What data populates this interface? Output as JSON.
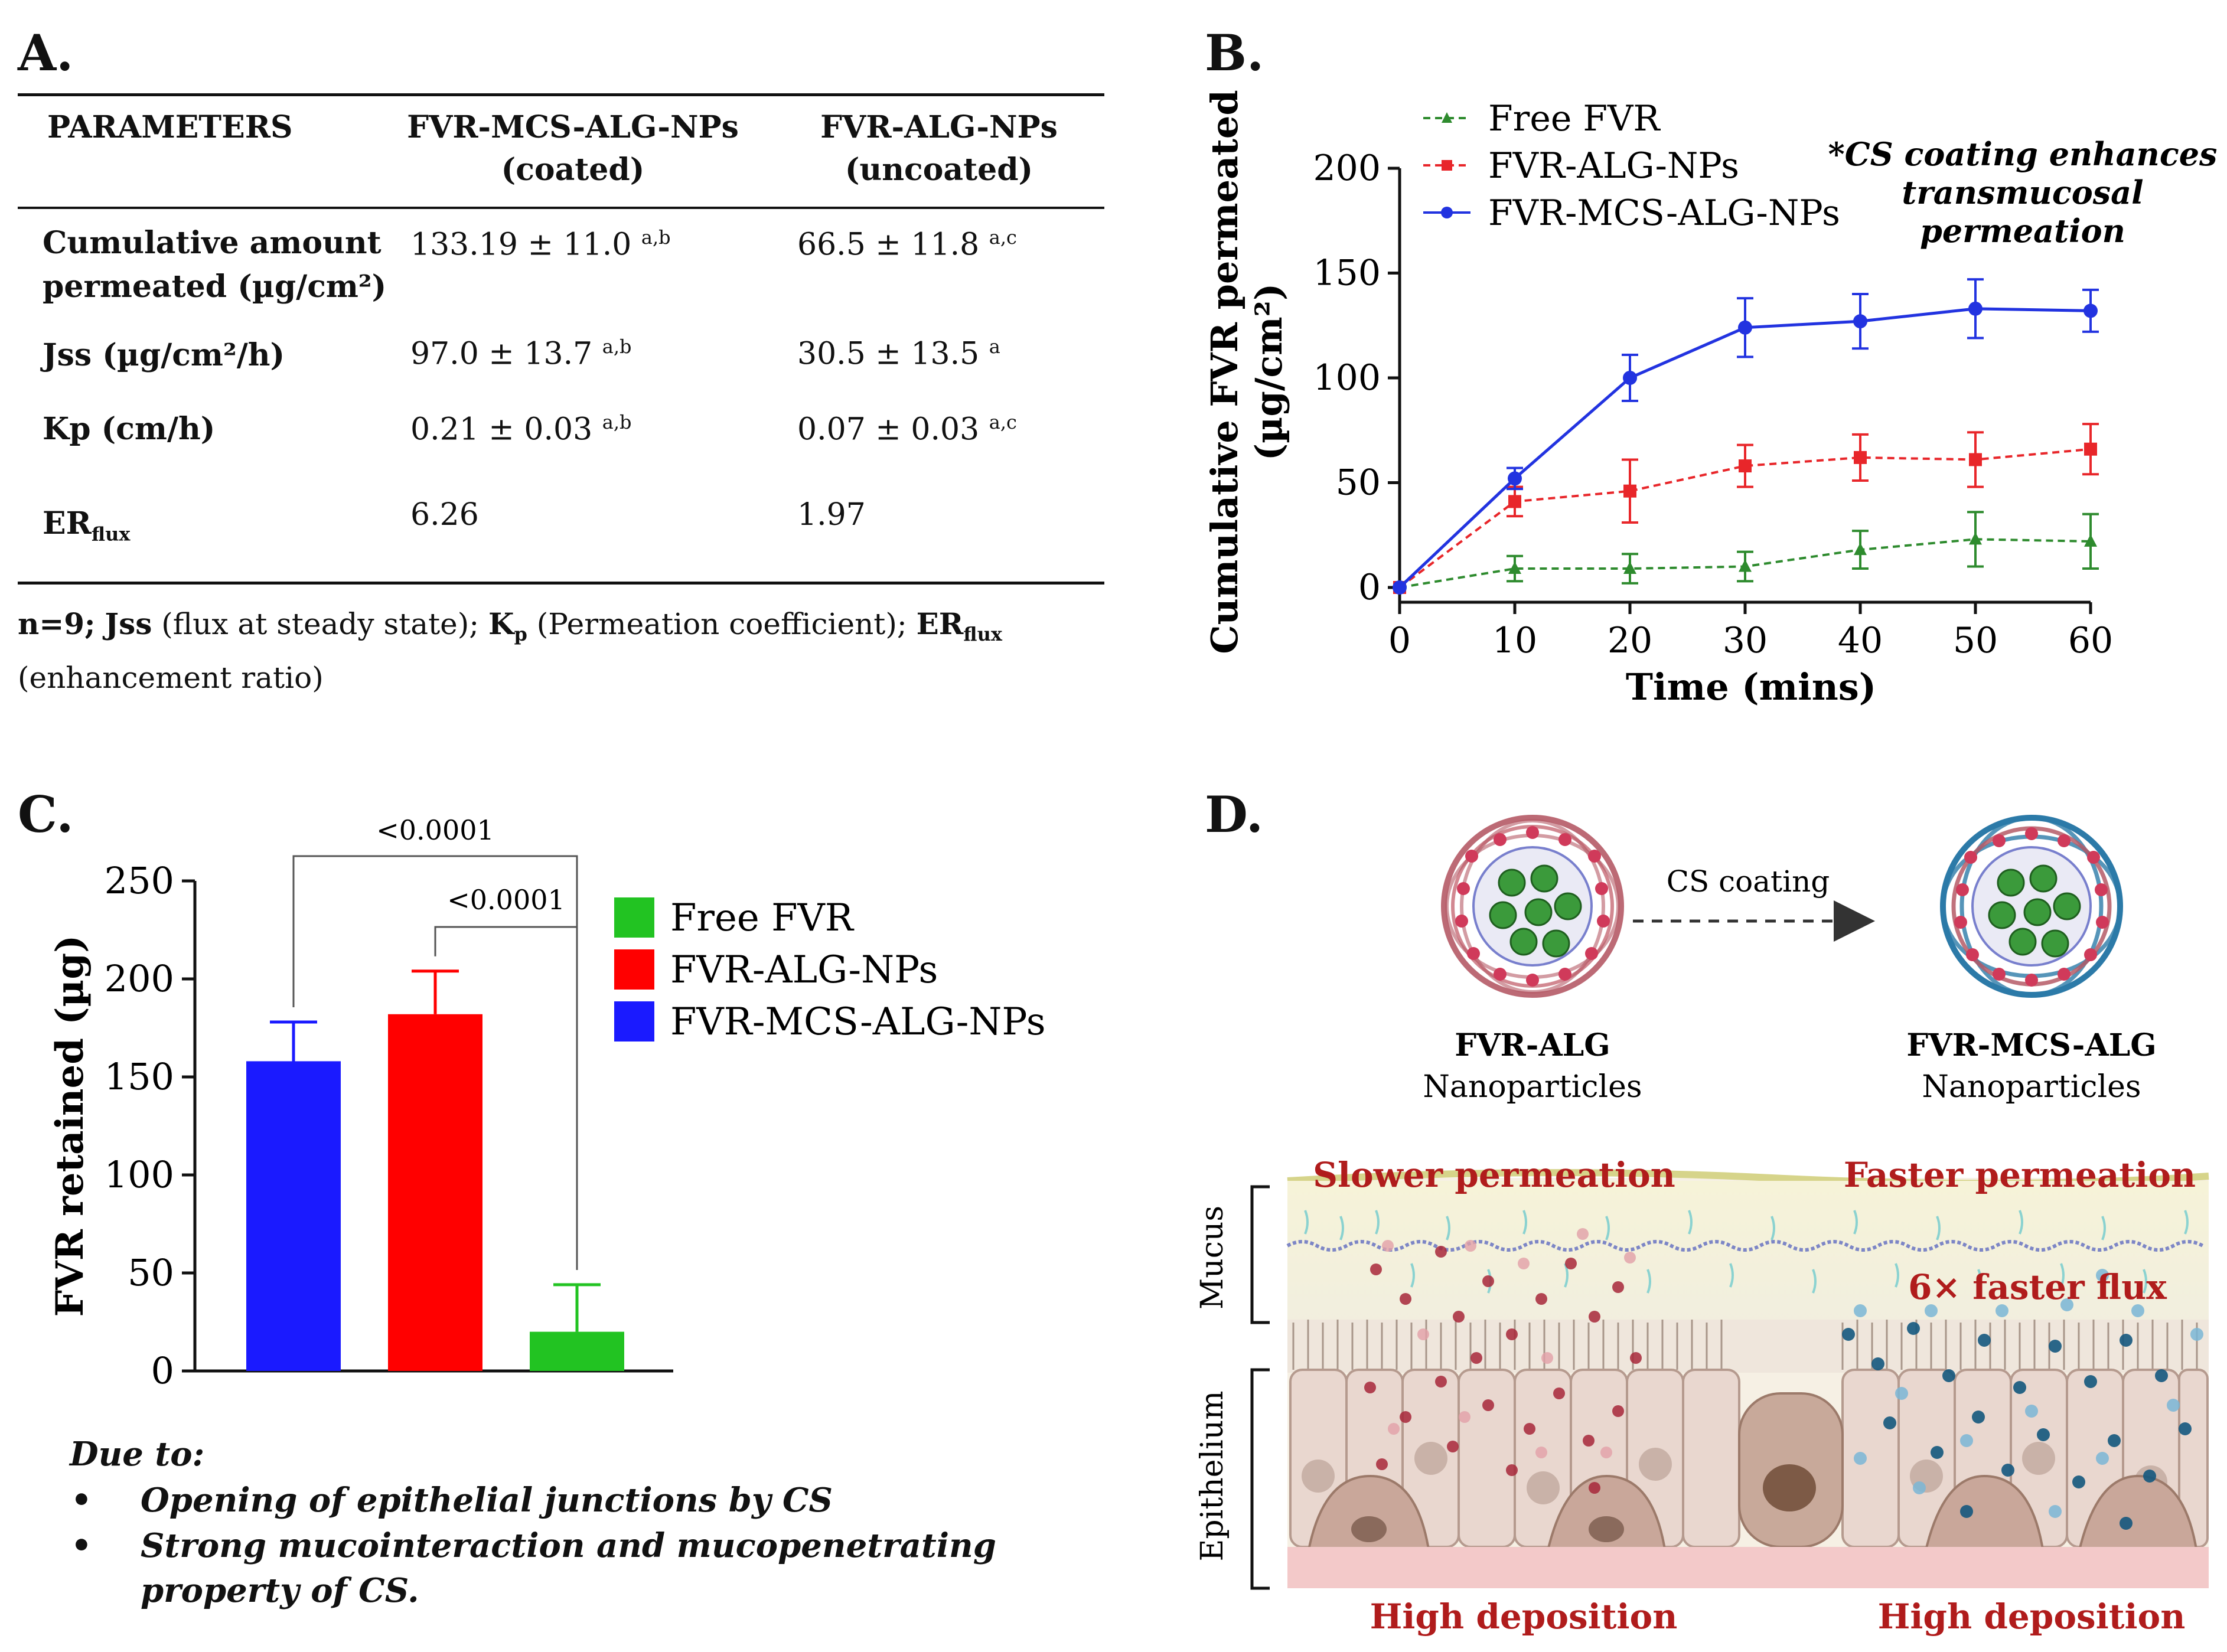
{
  "panels": {
    "a": "A.",
    "b": "B.",
    "c": "C.",
    "d": "D."
  },
  "table": {
    "headers": {
      "parameters": "PARAMETERS",
      "col1_line1": "FVR-MCS-ALG-NPs",
      "col1_line2": "(coated)",
      "col2_line1": "FVR-ALG-NPs",
      "col2_line2": "(uncoated)"
    },
    "rows": [
      {
        "label_line1": "Cumulative amount",
        "label_line2": "permeated (µg/cm²)",
        "c1": "133.19  ± 11.0",
        "c1_sup": "a,b",
        "c2": "66.5 ± 11.8",
        "c2_sup": "a,c"
      },
      {
        "label": "Jss (µg/cm²/h)",
        "c1": "97.0 ± 13.7",
        "c1_sup": "a,b",
        "c2": "30.5 ± 13.5",
        "c2_sup": "a"
      },
      {
        "label": "Kp (cm/h)",
        "c1": "0.21 ± 0.03",
        "c1_sup": "a,b",
        "c2": "0.07 ± 0.03",
        "c2_sup": "a,c"
      },
      {
        "label": "ER",
        "label_sub": "flux",
        "c1": "6.26",
        "c2": "1.97"
      }
    ],
    "note": {
      "n": "n=9;",
      "jss": "Jss",
      "jss_desc": "(flux at steady state);",
      "kp": "K",
      "kp_sub": "p",
      "kp_desc": "(Permeation coefficient);",
      "er": "ER",
      "er_sub": "flux",
      "er_desc": "(enhancement ratio)"
    }
  },
  "chart_data": [
    {
      "panel": "B",
      "type": "line",
      "x": [
        0,
        10,
        20,
        30,
        40,
        50,
        60
      ],
      "series": [
        {
          "name": "Free FVR",
          "color": "#2e8b2e",
          "marker": "triangle",
          "dashed": true,
          "values": [
            0,
            9,
            9,
            10,
            18,
            23,
            22
          ],
          "errors": [
            0,
            6,
            7,
            7,
            9,
            13,
            13
          ]
        },
        {
          "name": "FVR-ALG-NPs",
          "color": "#e8262a",
          "marker": "square",
          "dashed": true,
          "values": [
            0,
            41,
            46,
            58,
            62,
            61,
            66
          ],
          "errors": [
            0,
            7,
            15,
            10,
            11,
            13,
            12
          ]
        },
        {
          "name": "FVR-MCS-ALG-NPs",
          "color": "#2233e0",
          "marker": "circle",
          "dashed": false,
          "values": [
            0,
            52,
            100,
            124,
            127,
            133,
            132
          ],
          "errors": [
            0,
            5,
            11,
            14,
            13,
            14,
            10
          ]
        }
      ],
      "xlabel": "Time (mins)",
      "ylabel_line1": "Cumulative FVR permeated",
      "ylabel_line2": "(µg/cm²)",
      "xticks": [
        "0",
        "10",
        "20",
        "30",
        "40",
        "50",
        "60"
      ],
      "yticks": [
        "0",
        "50",
        "100",
        "150",
        "200"
      ],
      "xlim": [
        0,
        60
      ],
      "ylim": [
        0,
        200
      ],
      "legend": "top-left",
      "annotation_line1": "*CS coating enhances",
      "annotation_line2": "transmucosal",
      "annotation_line3": "permeation"
    },
    {
      "panel": "C",
      "type": "bar",
      "categories": [
        "FVR-MCS-ALG-NPs",
        "FVR-ALG-NPs",
        "Free FVR"
      ],
      "values": [
        158,
        182,
        20
      ],
      "errors": [
        20,
        22,
        24
      ],
      "colors": [
        "#1a1aff",
        "#ff0000",
        "#22c322"
      ],
      "ylabel": "FVR retained (µg)",
      "yticks": [
        "0",
        "50",
        "100",
        "150",
        "200",
        "250"
      ],
      "ylim": [
        0,
        250
      ],
      "legend": [
        "Free FVR",
        "FVR-ALG-NPs",
        "FVR-MCS-ALG-NPs"
      ],
      "legend_colors": [
        "#22c322",
        "#ff0000",
        "#1a1aff"
      ],
      "brackets": [
        "<0.0001",
        "<0.0001"
      ]
    }
  ],
  "due_to": {
    "heading": "Due to:",
    "bullet": "•",
    "item1": "Opening of epithelial junctions by CS",
    "item2_line1": "Strong mucointeraction and mucopenetrating",
    "item2_line2": "property of CS."
  },
  "diagram_d": {
    "arrow_label": "CS coating",
    "left_np_line1": "FVR-ALG",
    "left_np_line2": "Nanoparticles",
    "right_np_line1": "FVR-MCS-ALG",
    "right_np_line2": "Nanoparticles",
    "slower": "Slower permeation",
    "faster": "Faster permeation",
    "flux": "6× faster flux",
    "mucus": "Mucus",
    "epithelium": "Epithelium",
    "deposition_left": "High deposition",
    "deposition_right": "High deposition"
  }
}
